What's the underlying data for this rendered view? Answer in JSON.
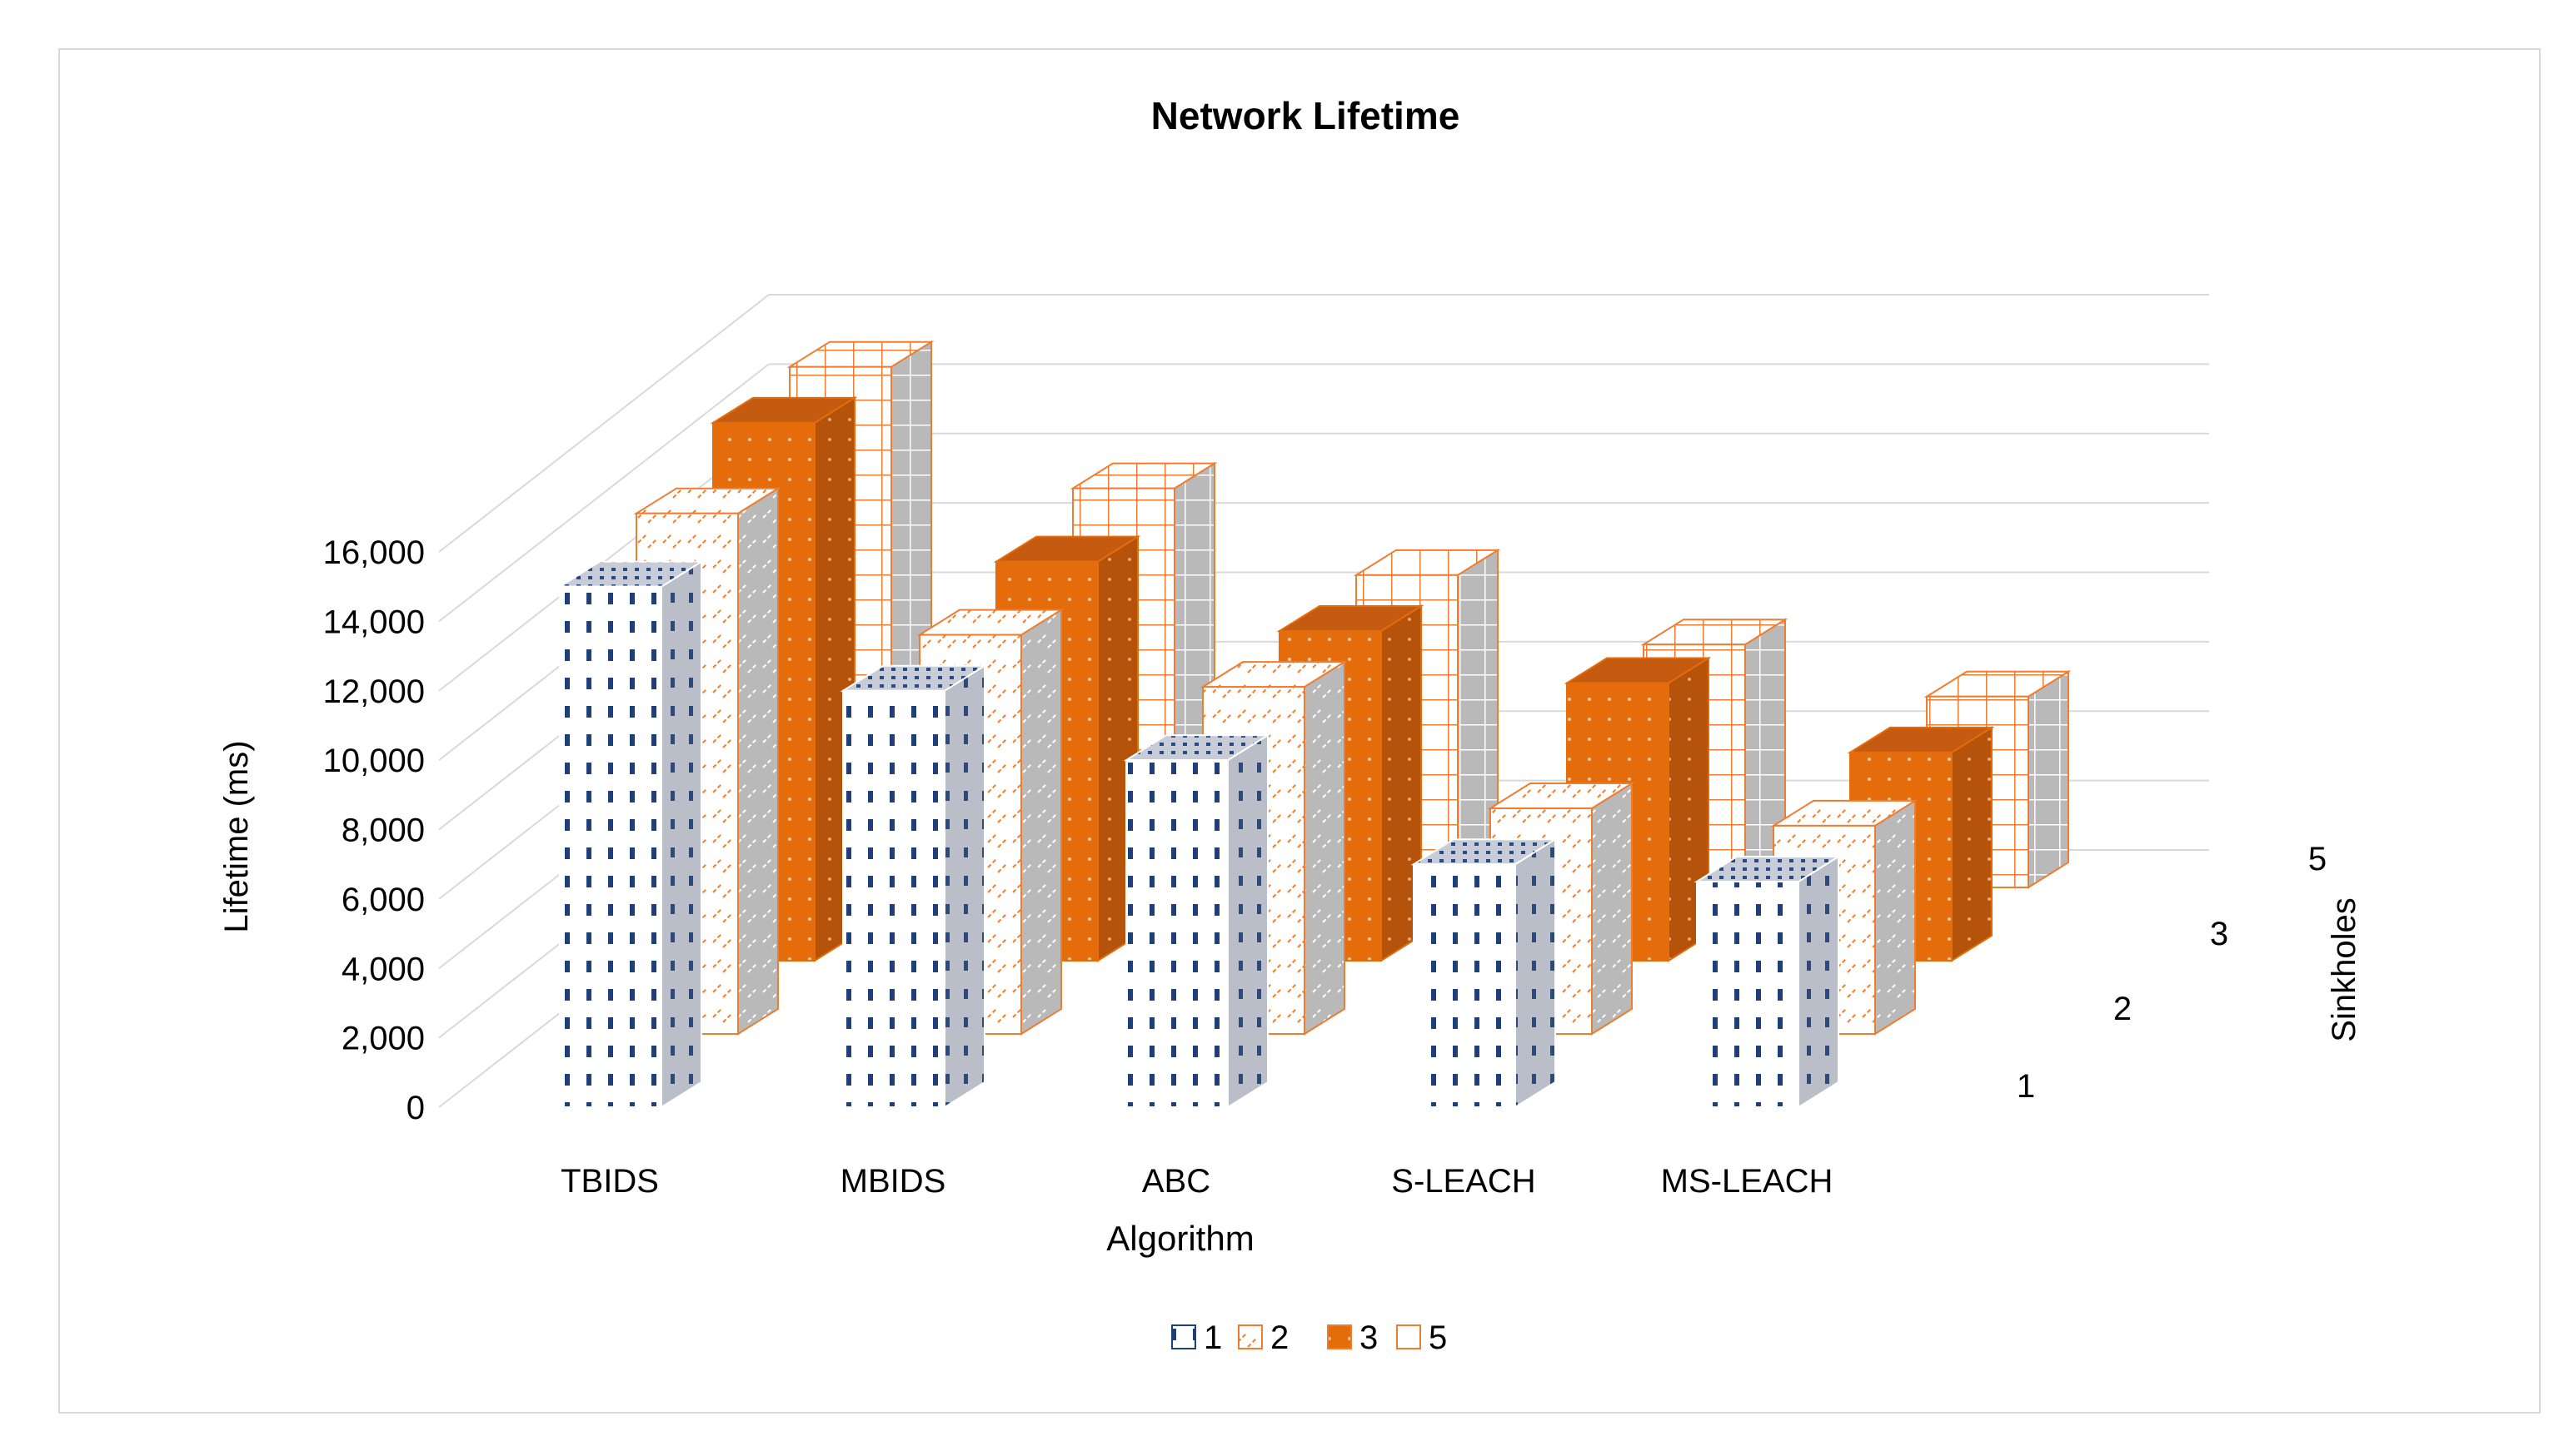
{
  "chart_data": {
    "type": "bar",
    "subtype": "3d-column",
    "title": "Network Lifetime",
    "xlabel": "Algorithm",
    "ylabel": "Lifetime (ms)",
    "zlabel": "Sinkholes",
    "categories": [
      "TBIDS",
      "MBIDS",
      "ABC",
      "S-LEACH",
      "MS-LEACH"
    ],
    "ylim": [
      0,
      16000
    ],
    "yticks": [
      "0",
      "2,000",
      "4,000",
      "6,000",
      "8,000",
      "10,000",
      "12,000",
      "14,000",
      "16,000"
    ],
    "grid": true,
    "legend_position": "bottom",
    "series": [
      {
        "name": "1",
        "values": [
          15000,
          12000,
          10000,
          7000,
          6500
        ],
        "pattern": "dashes",
        "color": "#1f3f7a"
      },
      {
        "name": "2",
        "values": [
          15000,
          11500,
          10000,
          6500,
          6000
        ],
        "pattern": "diagonal",
        "color": "#ed7d31"
      },
      {
        "name": "3",
        "values": [
          15500,
          11500,
          9500,
          8000,
          6000
        ],
        "pattern": "dotted-solid",
        "color": "#ed7d31"
      },
      {
        "name": "5",
        "values": [
          15000,
          11500,
          9000,
          7000,
          5500
        ],
        "pattern": "grid",
        "color": "#ed7d31"
      }
    ]
  }
}
